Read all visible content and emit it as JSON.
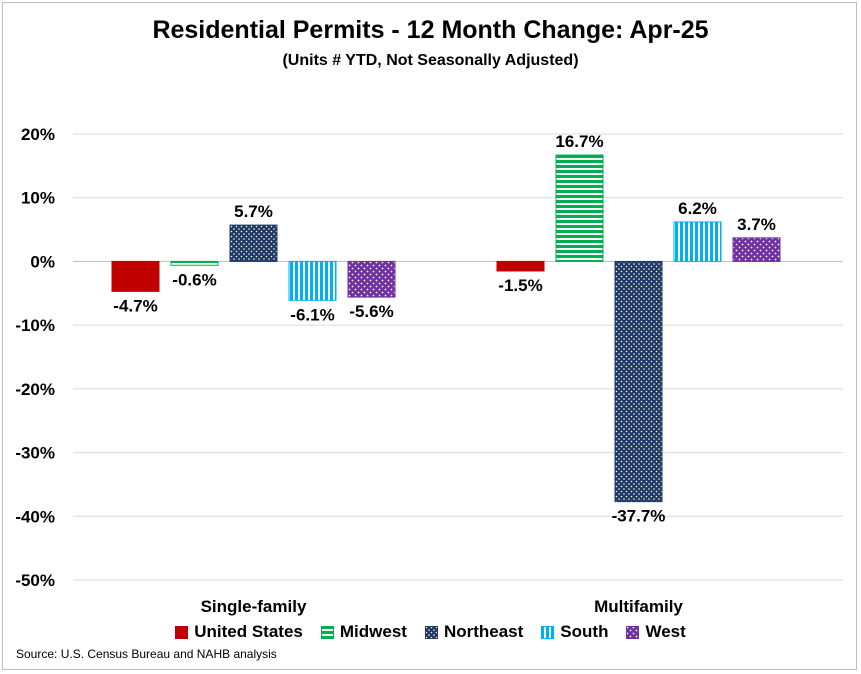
{
  "chart_data": {
    "type": "bar",
    "title": "Residential Permits - 12 Month Change:  Apr-25",
    "subtitle": "(Units # YTD, Not Seasonally Adjusted)",
    "categories": [
      "Single-family",
      "Multifamily"
    ],
    "series": [
      {
        "name": "United States",
        "values": [
          -4.7,
          -1.5
        ],
        "labels": [
          "-4.7%",
          "-1.5%"
        ],
        "color": "#c00000",
        "pattern": "solid"
      },
      {
        "name": "Midwest",
        "values": [
          -0.6,
          16.7
        ],
        "labels": [
          "-0.6%",
          "16.7%"
        ],
        "color": "#00b050",
        "pattern": "horizontal-lines"
      },
      {
        "name": "Northeast",
        "values": [
          5.7,
          -37.7
        ],
        "labels": [
          "5.7%",
          "-37.7%"
        ],
        "color": "#1f3864",
        "pattern": "dots"
      },
      {
        "name": "South",
        "values": [
          -6.1,
          6.2
        ],
        "labels": [
          "-6.1%",
          "6.2%"
        ],
        "color": "#00b0f0",
        "pattern": "vertical-lines"
      },
      {
        "name": "West",
        "values": [
          -5.6,
          3.7
        ],
        "labels": [
          "-5.6%",
          "3.7%"
        ],
        "color": "#7030a0",
        "pattern": "dots"
      }
    ],
    "ylim": [
      -50,
      20
    ],
    "yticks": [
      20,
      10,
      0,
      -10,
      -20,
      -30,
      -40,
      -50
    ],
    "ytick_labels": [
      "20%",
      "10%",
      "0%",
      "-10%",
      "-20%",
      "-30%",
      "-40%",
      "-50%"
    ],
    "grid": true,
    "legend_position": "bottom",
    "source": "Source: U.S. Census Bureau and NAHB analysis"
  }
}
